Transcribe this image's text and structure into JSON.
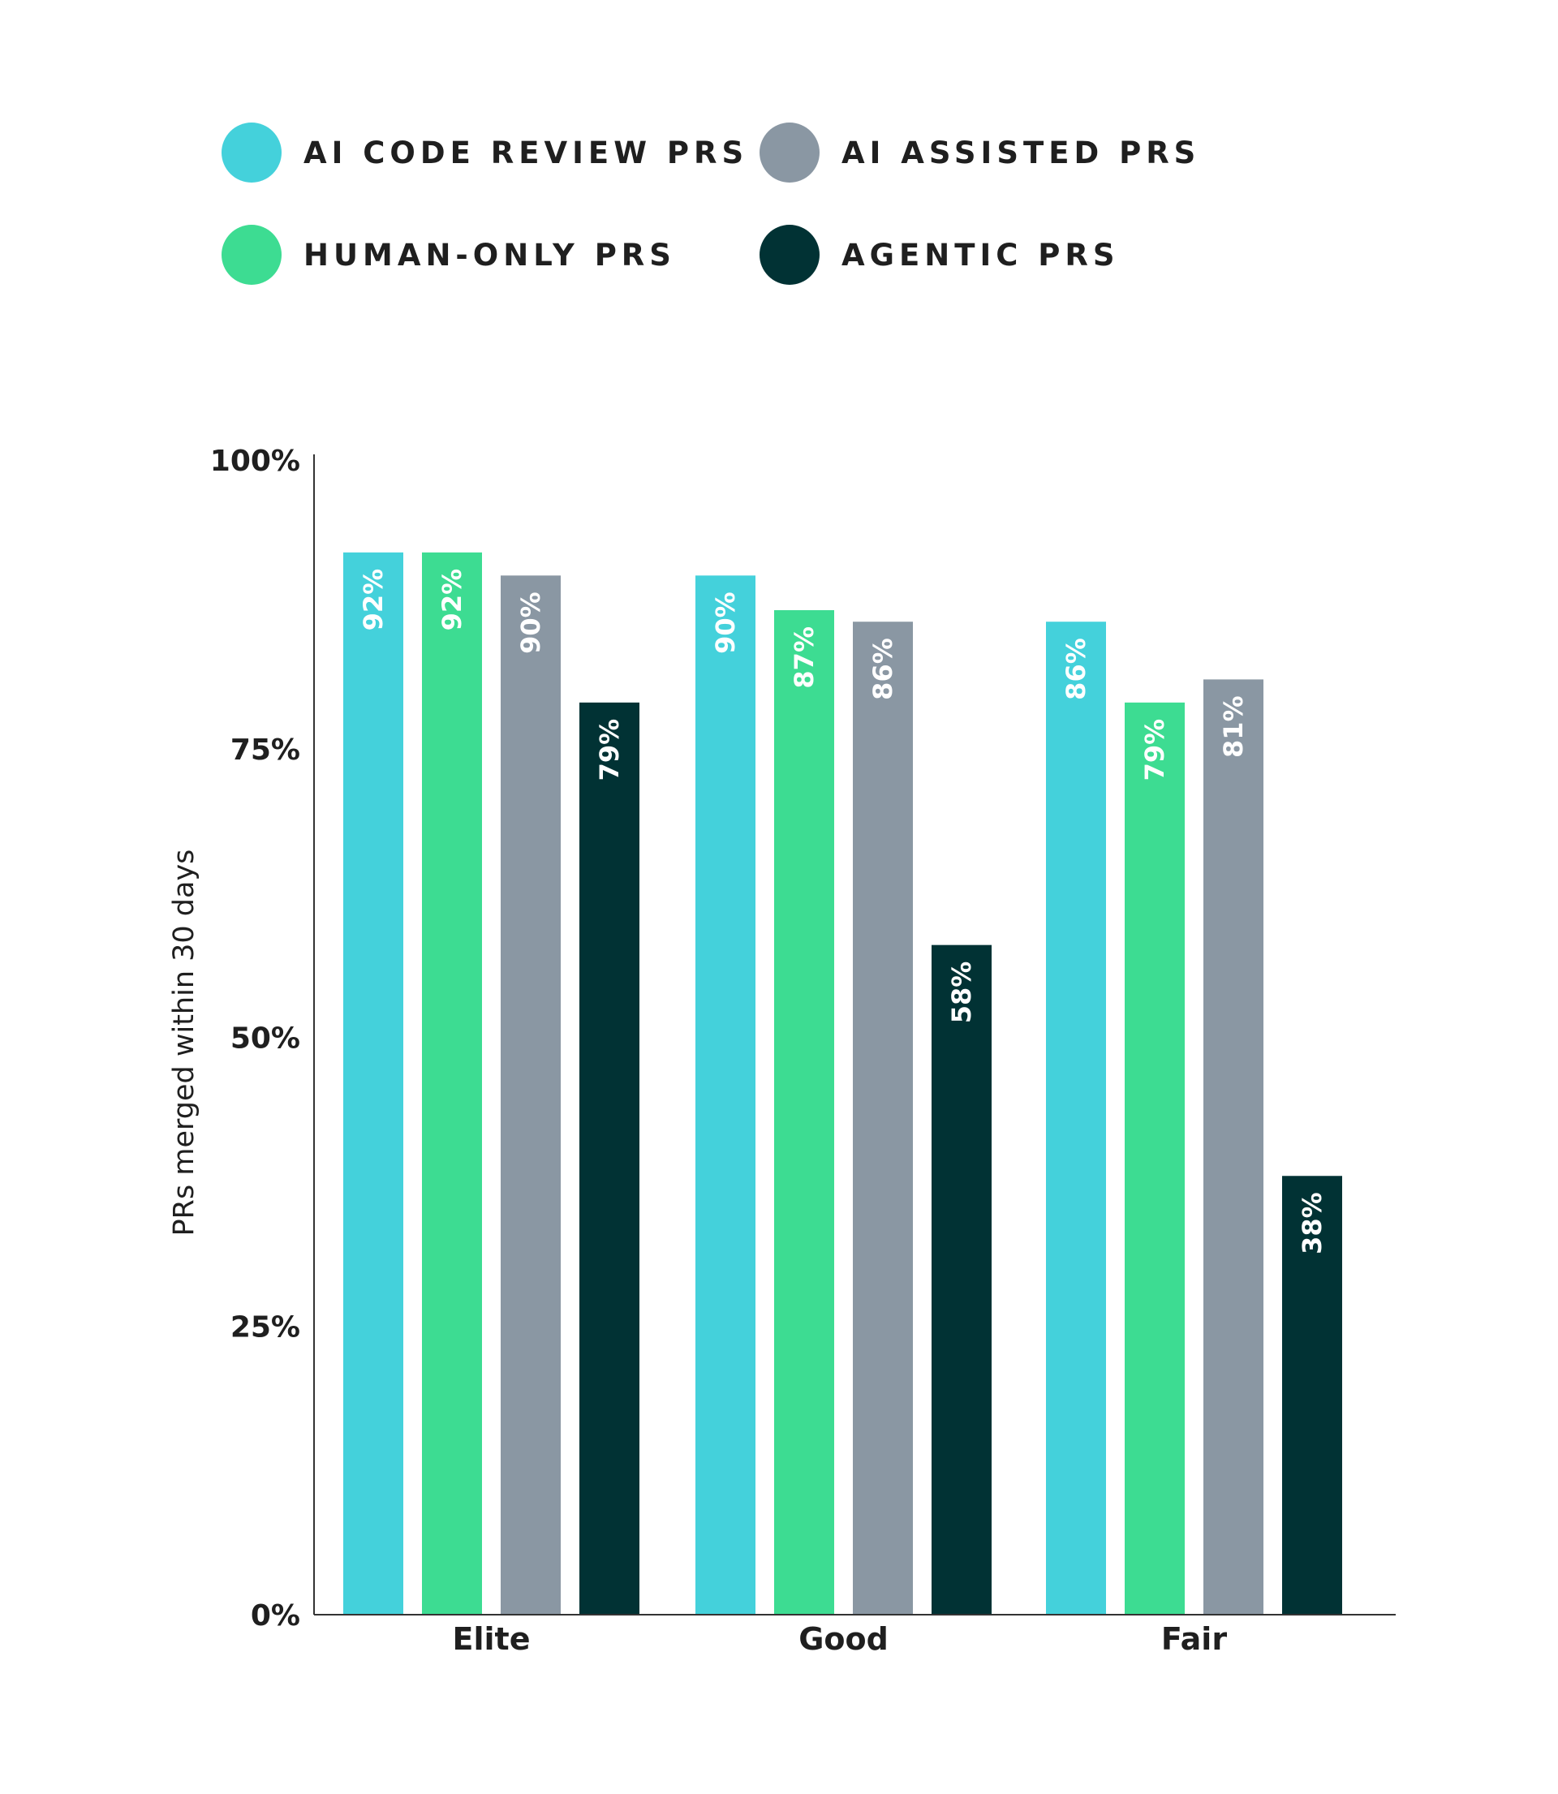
{
  "chart_data": {
    "type": "bar",
    "categories": [
      "Elite",
      "Good",
      "Fair"
    ],
    "series": [
      {
        "name": "AI CODE REVIEW PRS",
        "color": "#44D1DB",
        "values": [
          92,
          90,
          86
        ],
        "labels": [
          "92%",
          "90%",
          "86%"
        ]
      },
      {
        "name": "HUMAN-ONLY PRS",
        "color": "#3DDC92",
        "values": [
          92,
          87,
          79
        ],
        "labels": [
          "92%",
          "87%",
          "79%"
        ]
      },
      {
        "name": "AI ASSISTED PRS",
        "color": "#8A97A3",
        "values": [
          90,
          86,
          81
        ],
        "labels": [
          "90%",
          "86%",
          "81%"
        ]
      },
      {
        "name": "AGENTIC PRS",
        "color": "#013234",
        "values": [
          79,
          58,
          38
        ],
        "labels": [
          "79%",
          "58%",
          "38%"
        ]
      }
    ],
    "ylabel": "PRs merged  within 30 days",
    "xlabel": "",
    "ylim": [
      0,
      100
    ],
    "yticks": [
      0,
      25,
      50,
      75,
      100
    ],
    "ytick_labels": [
      "0%",
      "25%",
      "50%",
      "75%",
      "100%"
    ],
    "legend_position": "top",
    "grid": false
  }
}
